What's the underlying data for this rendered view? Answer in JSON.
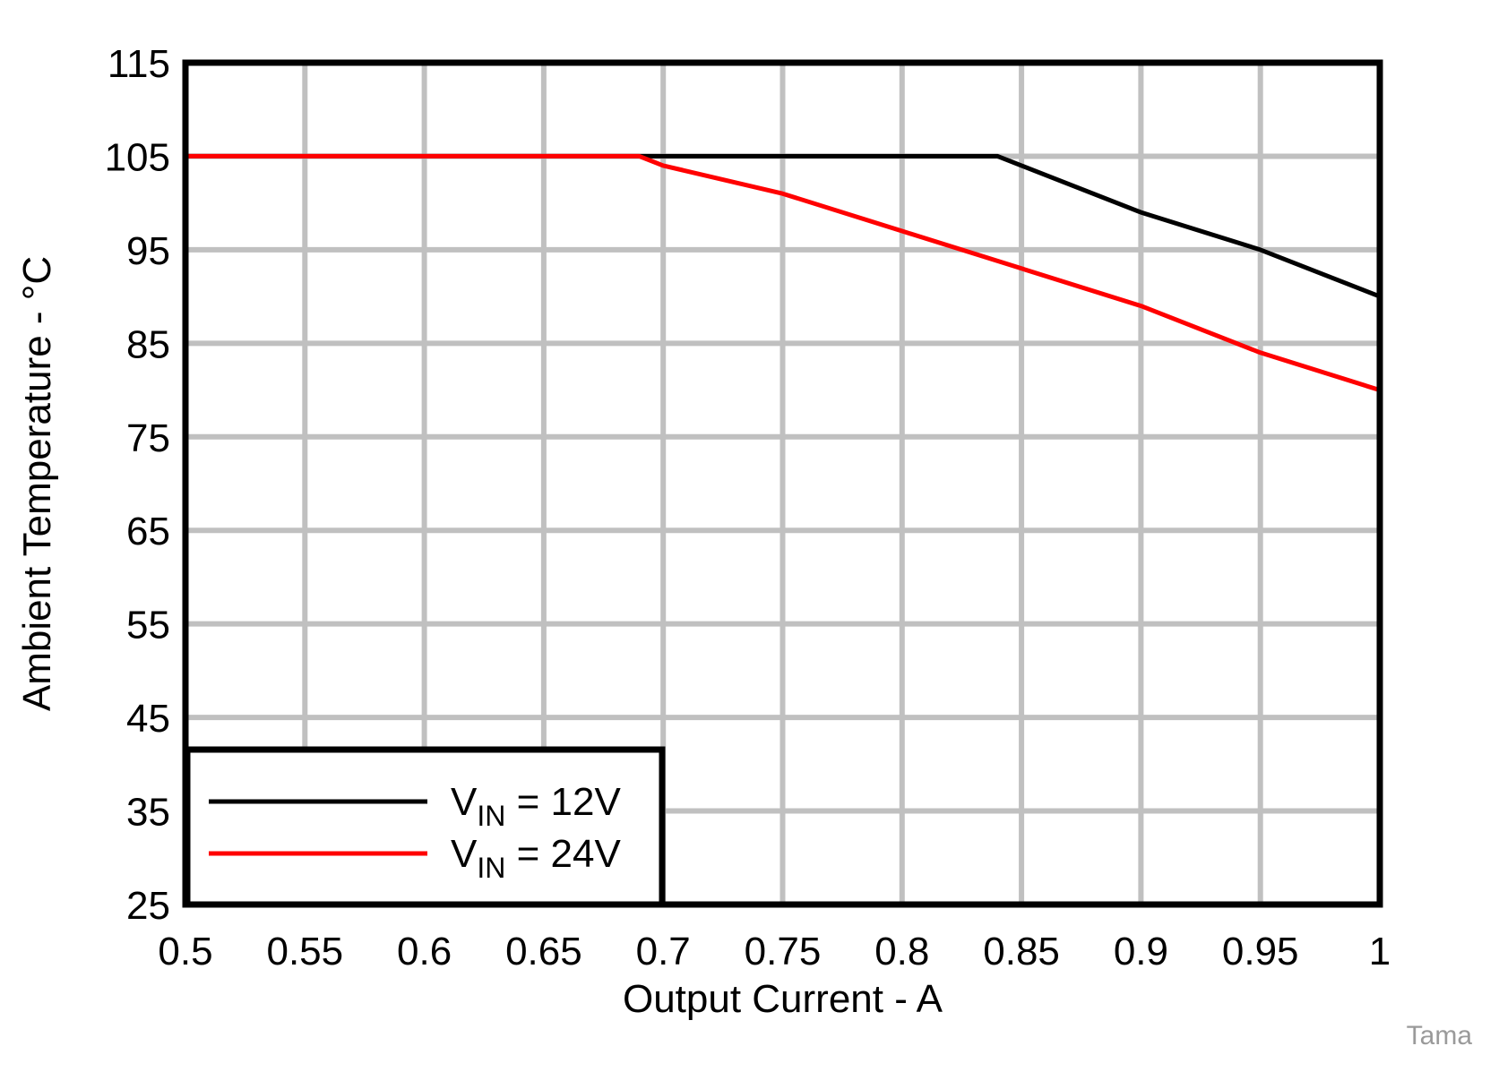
{
  "chart_data": {
    "type": "line",
    "xlabel": "Output Current - A",
    "ylabel": "Ambient Temperature - °C",
    "xlim": [
      0.5,
      1.0
    ],
    "ylim": [
      25,
      115
    ],
    "x_ticks": [
      "0.5",
      "0.55",
      "0.6",
      "0.65",
      "0.7",
      "0.75",
      "0.8",
      "0.85",
      "0.9",
      "0.95",
      "1"
    ],
    "y_ticks": [
      "25",
      "35",
      "45",
      "55",
      "65",
      "75",
      "85",
      "95",
      "105",
      "115"
    ],
    "grid": true,
    "legend_position": "bottom-left",
    "series": [
      {
        "name": "VIN = 12V",
        "legend": {
          "main": "V",
          "sub": "IN",
          "rest": " = 12V"
        },
        "color": "#000000",
        "x": [
          0.5,
          0.55,
          0.6,
          0.65,
          0.7,
          0.75,
          0.8,
          0.84,
          0.85,
          0.9,
          0.95,
          1.0
        ],
        "y": [
          105,
          105,
          105,
          105,
          105,
          105,
          105,
          105,
          104,
          99,
          95,
          90
        ]
      },
      {
        "name": "VIN = 24V",
        "legend": {
          "main": "V",
          "sub": "IN",
          "rest": " = 24V"
        },
        "color": "#ff0000",
        "x": [
          0.5,
          0.55,
          0.6,
          0.65,
          0.69,
          0.7,
          0.75,
          0.8,
          0.85,
          0.9,
          0.95,
          1.0
        ],
        "y": [
          105,
          105,
          105,
          105,
          105,
          104,
          101,
          97,
          93,
          89,
          84,
          80
        ]
      }
    ]
  },
  "credit": "Tama"
}
